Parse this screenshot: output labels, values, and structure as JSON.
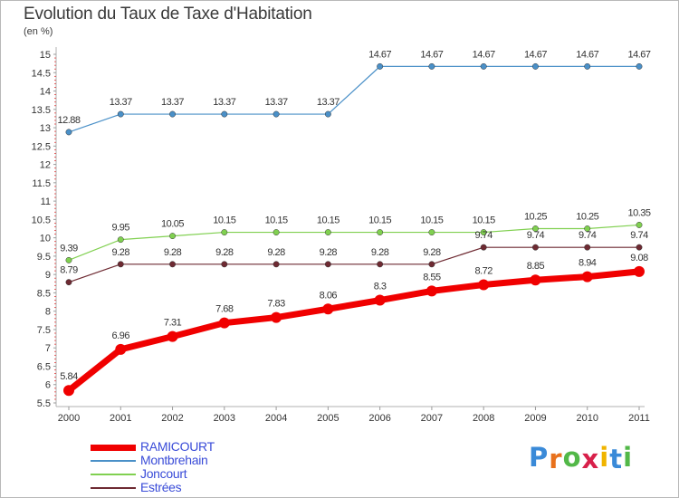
{
  "header": {
    "title": "Evolution du Taux de Taxe d'Habitation",
    "unit": "(en %)"
  },
  "logo": {
    "letters": [
      "P",
      "r",
      "o",
      "x",
      "i",
      "t",
      "i"
    ],
    "colors": [
      "#3a8ad8",
      "#e8711c",
      "#52b848",
      "#d8204a",
      "#f0b400",
      "#3a8ad8",
      "#52b848"
    ]
  },
  "chart_data": {
    "type": "line",
    "title": "Evolution du Taux de Taxe d'Habitation",
    "ylabel": "(en %)",
    "xlabel": "",
    "categories": [
      "2000",
      "2001",
      "2002",
      "2003",
      "2004",
      "2005",
      "2006",
      "2007",
      "2008",
      "2009",
      "2010",
      "2011"
    ],
    "ylim": [
      5.5,
      15
    ],
    "y_ticks": [
      "5.5",
      "6",
      "6.5",
      "7",
      "7.5",
      "8",
      "8.5",
      "9",
      "9.5",
      "10",
      "10.5",
      "11",
      "11.5",
      "12",
      "12.5",
      "13",
      "13.5",
      "14",
      "14.5",
      "15"
    ],
    "grid": false,
    "legend_position": "bottom-left",
    "series": [
      {
        "name": "RAMICOURT",
        "color": "#f00000",
        "values": [
          5.84,
          6.96,
          7.31,
          7.68,
          7.83,
          8.06,
          8.3,
          8.55,
          8.72,
          8.85,
          8.94,
          9.08
        ],
        "labels": [
          "5.84",
          "6.96",
          "7.31",
          "7.68",
          "7.83",
          "8.06",
          "8.3",
          "8.55",
          "8.72",
          "8.85",
          "8.94",
          "9.08"
        ]
      },
      {
        "name": "Montbrehain",
        "color": "#4a90c8",
        "values": [
          12.88,
          13.37,
          13.37,
          13.37,
          13.37,
          13.37,
          14.67,
          14.67,
          14.67,
          14.67,
          14.67,
          14.67
        ],
        "labels": [
          "12.88",
          "13.37",
          "13.37",
          "13.37",
          "13.37",
          "13.37",
          "14.67",
          "14.67",
          "14.67",
          "14.67",
          "14.67",
          "14.67"
        ]
      },
      {
        "name": "Joncourt",
        "color": "#80d050",
        "values": [
          9.39,
          9.95,
          10.05,
          10.15,
          10.15,
          10.15,
          10.15,
          10.15,
          10.15,
          10.25,
          10.25,
          10.35
        ],
        "labels": [
          "9.39",
          "9.95",
          "10.05",
          "10.15",
          "10.15",
          "10.15",
          "10.15",
          "10.15",
          "10.15",
          "10.25",
          "10.25",
          "10.35"
        ]
      },
      {
        "name": "Estrées",
        "color": "#6e2a32",
        "values": [
          8.79,
          9.28,
          9.28,
          9.28,
          9.28,
          9.28,
          9.28,
          9.28,
          9.74,
          9.74,
          9.74,
          9.74
        ],
        "labels": [
          "8.79",
          "9.28",
          "9.28",
          "9.28",
          "9.28",
          "9.28",
          "9.28",
          "9.28",
          "9.74",
          "9.74",
          "9.74",
          "9.74"
        ]
      }
    ]
  }
}
